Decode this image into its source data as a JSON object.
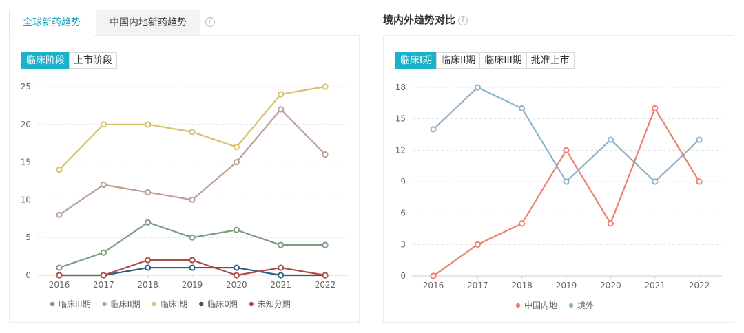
{
  "left": {
    "tabs": [
      {
        "label": "全球新药趋势",
        "active": true
      },
      {
        "label": "中国内地新药趋势",
        "active": false
      }
    ],
    "help_glyph": "?",
    "segments": [
      {
        "label": "临床阶段",
        "active": true
      },
      {
        "label": "上市阶段",
        "active": false
      }
    ]
  },
  "right": {
    "title": "境内外趋势对比",
    "help_glyph": "?",
    "segments": [
      {
        "label": "临床I期",
        "active": true
      },
      {
        "label": "临床II期",
        "active": false
      },
      {
        "label": "临床III期",
        "active": false
      },
      {
        "label": "批准上市",
        "active": false
      }
    ]
  },
  "chart_data": [
    {
      "type": "line",
      "x": [
        "2016",
        "2017",
        "2018",
        "2019",
        "2020",
        "2021",
        "2022"
      ],
      "ylim": [
        0,
        25
      ],
      "yticks": [
        0,
        5,
        10,
        15,
        20,
        25
      ],
      "grid": true,
      "legend_position": "bottom",
      "series": [
        {
          "name": "临床III期",
          "color": "#7a9e7e",
          "values": [
            1,
            3,
            7,
            5,
            6,
            4,
            4
          ]
        },
        {
          "name": "临床II期",
          "color": "#b9a093",
          "values": [
            8,
            12,
            11,
            10,
            15,
            22,
            16
          ]
        },
        {
          "name": "临床I期",
          "color": "#d8c16a",
          "values": [
            14,
            20,
            20,
            19,
            17,
            24,
            25
          ]
        },
        {
          "name": "临床0期",
          "color": "#2c5f7c",
          "values": [
            0,
            0,
            1,
            1,
            1,
            0,
            0
          ]
        },
        {
          "name": "未知分期",
          "color": "#b24b4b",
          "values": [
            0,
            0,
            2,
            2,
            0,
            1,
            0
          ]
        }
      ]
    },
    {
      "type": "line",
      "x": [
        "2016",
        "2017",
        "2018",
        "2019",
        "2020",
        "2021",
        "2022"
      ],
      "ylim": [
        0,
        18
      ],
      "yticks": [
        0,
        3,
        6,
        9,
        12,
        15,
        18
      ],
      "grid": true,
      "legend_position": "bottom",
      "series": [
        {
          "name": "中国内地",
          "color": "#ee7f6e",
          "values": [
            0,
            3,
            5,
            12,
            5,
            16,
            9
          ]
        },
        {
          "name": "境外",
          "color": "#8fb2c6",
          "values": [
            14,
            18,
            16,
            9,
            13,
            9,
            13
          ]
        }
      ]
    }
  ]
}
